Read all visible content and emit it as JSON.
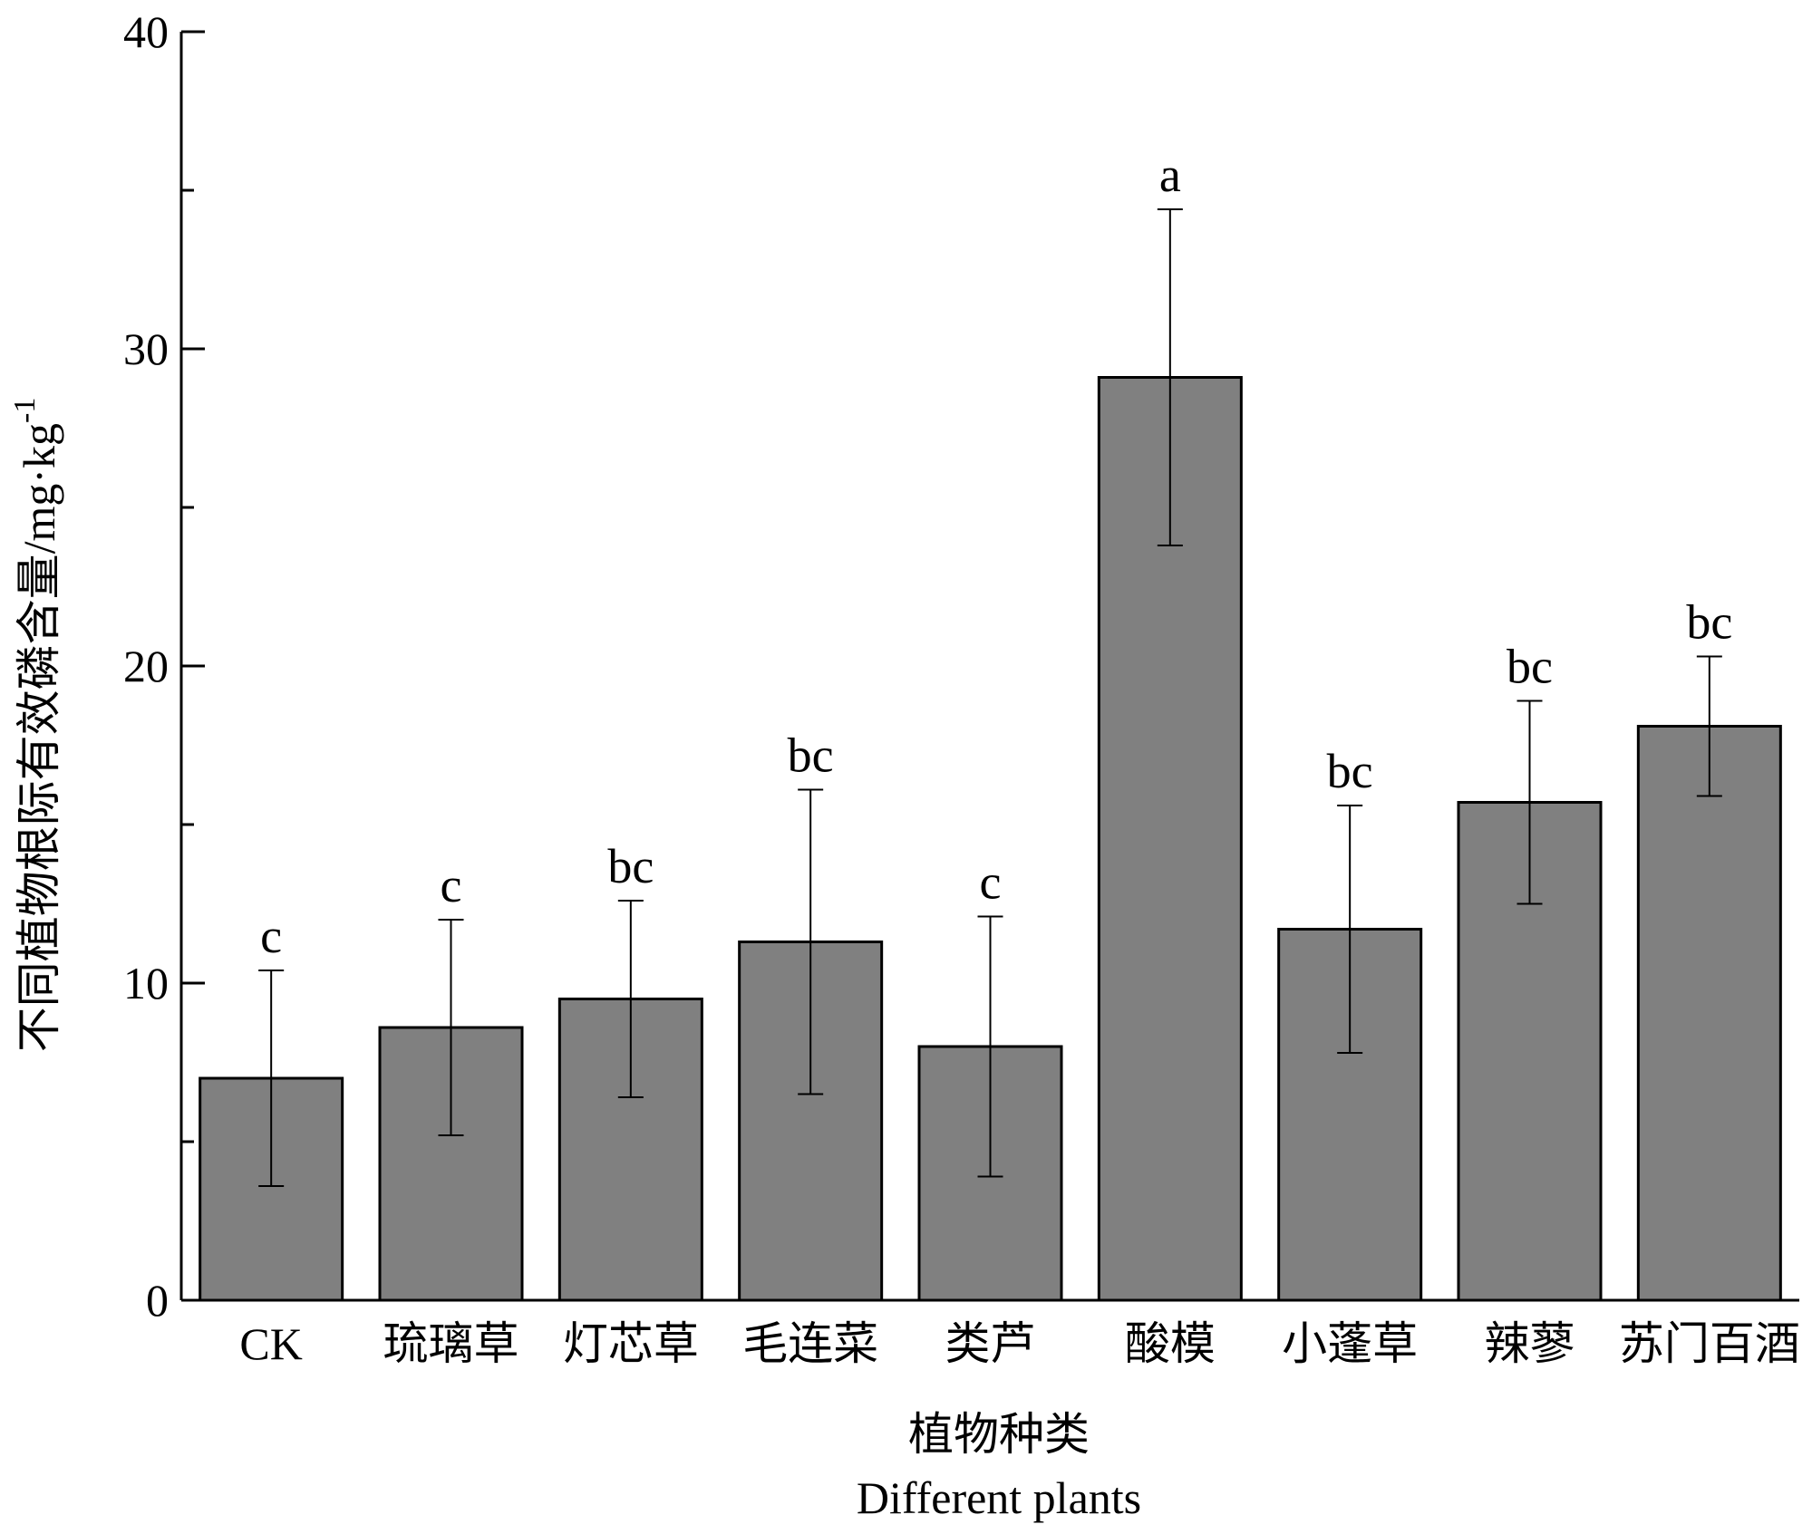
{
  "chart_data": {
    "type": "bar",
    "ylabel": "不同植物根际有效磷含量/mg·kg",
    "ylabel_sup": "-1",
    "xlabel": "植物种类",
    "xlabel_en": "Different plants",
    "ylim": [
      0,
      40
    ],
    "y_ticks": [
      "0",
      "10",
      "20",
      "30",
      "40"
    ],
    "categories": [
      "CK",
      "琉璃草",
      "灯芯草",
      "毛连菜",
      "类芦",
      "酸模",
      "小蓬草",
      "辣蓼",
      "苏门百酒"
    ],
    "values": [
      7.0,
      8.6,
      9.5,
      11.3,
      8.0,
      29.1,
      11.7,
      15.7,
      18.1
    ],
    "errors": [
      3.4,
      3.4,
      3.1,
      4.8,
      4.1,
      5.3,
      3.9,
      3.2,
      2.2
    ],
    "significance": [
      "c",
      "c",
      "bc",
      "bc",
      "c",
      "a",
      "bc",
      "bc",
      "bc"
    ],
    "colors": {
      "bar_fill": "#808080"
    }
  }
}
